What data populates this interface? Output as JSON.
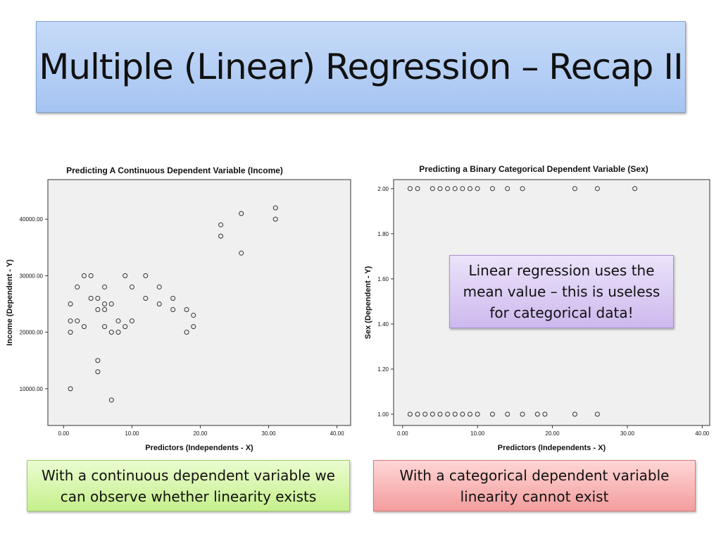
{
  "slide": {
    "title": "Multiple (Linear) Regression – Recap II"
  },
  "colors": {
    "title_bg": "#b5cff5",
    "plot_bg": "#f0f0f0",
    "purple_box": "#dccbf5",
    "green_box": "#d8f6b0",
    "red_box": "#f9bcbc"
  },
  "callouts": {
    "purple": "Linear regression uses the mean value – this is useless for categorical data!",
    "green": "With a continuous dependent variable we can observe whether linearity exists",
    "red": "With a categorical dependent variable linearity cannot exist"
  },
  "chart_data": [
    {
      "type": "scatter",
      "title": "Predicting A Continuous Dependent Variable (Income)",
      "xlabel": "Predictors (Independents - X)",
      "ylabel": "Income (Dependent - Y)",
      "xlim": [
        -2.3,
        42
      ],
      "ylim": [
        3500,
        47000
      ],
      "xticks": [
        0,
        10,
        20,
        30,
        40
      ],
      "xtick_labels": [
        "0.00",
        "10.00",
        "20.00",
        "30.00",
        "40.00"
      ],
      "yticks": [
        10000,
        20000,
        30000,
        40000
      ],
      "ytick_labels": [
        "10000.00",
        "20000.00",
        "30000.00",
        "40000.00"
      ],
      "points": [
        [
          1,
          10000
        ],
        [
          1,
          20000
        ],
        [
          1,
          22000
        ],
        [
          1,
          25000
        ],
        [
          2,
          22000
        ],
        [
          2,
          28000
        ],
        [
          3,
          21000
        ],
        [
          3,
          30000
        ],
        [
          4,
          26000
        ],
        [
          4,
          30000
        ],
        [
          5,
          13000
        ],
        [
          5,
          15000
        ],
        [
          5,
          24000
        ],
        [
          5,
          26000
        ],
        [
          6,
          21000
        ],
        [
          6,
          24000
        ],
        [
          6,
          25000
        ],
        [
          6,
          28000
        ],
        [
          7,
          8000
        ],
        [
          7,
          20000
        ],
        [
          7,
          25000
        ],
        [
          8,
          20000
        ],
        [
          8,
          22000
        ],
        [
          9,
          21000
        ],
        [
          9,
          30000
        ],
        [
          10,
          22000
        ],
        [
          10,
          28000
        ],
        [
          12,
          26000
        ],
        [
          12,
          30000
        ],
        [
          14,
          25000
        ],
        [
          14,
          28000
        ],
        [
          16,
          24000
        ],
        [
          16,
          26000
        ],
        [
          18,
          20000
        ],
        [
          18,
          24000
        ],
        [
          19,
          21000
        ],
        [
          19,
          23000
        ],
        [
          23,
          37000
        ],
        [
          23,
          39000
        ],
        [
          26,
          34000
        ],
        [
          26,
          41000
        ],
        [
          31,
          40000
        ],
        [
          31,
          42000
        ]
      ]
    },
    {
      "type": "scatter",
      "title": "Predicting a Binary Categorical Dependent Variable (Sex)",
      "xlabel": "Predictors (Independents - X)",
      "ylabel": "Sex (Dependent - Y)",
      "xlim": [
        -1.2,
        41
      ],
      "ylim": [
        0.95,
        2.04
      ],
      "xticks": [
        0,
        10,
        20,
        30,
        40
      ],
      "xtick_labels": [
        "0.00",
        "10.00",
        "20.00",
        "30.00",
        "40.00"
      ],
      "yticks": [
        1.0,
        1.2,
        1.4,
        1.6,
        1.8,
        2.0
      ],
      "ytick_labels": [
        "1.00",
        "1.20",
        "1.40",
        "1.60",
        "1.80",
        "2.00"
      ],
      "points": [
        [
          1,
          2
        ],
        [
          2,
          2
        ],
        [
          4,
          2
        ],
        [
          5,
          2
        ],
        [
          6,
          2
        ],
        [
          7,
          2
        ],
        [
          8,
          2
        ],
        [
          9,
          2
        ],
        [
          10,
          2
        ],
        [
          12,
          2
        ],
        [
          14,
          2
        ],
        [
          16,
          2
        ],
        [
          23,
          2
        ],
        [
          26,
          2
        ],
        [
          31,
          2
        ],
        [
          1,
          1
        ],
        [
          2,
          1
        ],
        [
          3,
          1
        ],
        [
          4,
          1
        ],
        [
          5,
          1
        ],
        [
          6,
          1
        ],
        [
          7,
          1
        ],
        [
          8,
          1
        ],
        [
          9,
          1
        ],
        [
          10,
          1
        ],
        [
          12,
          1
        ],
        [
          14,
          1
        ],
        [
          16,
          1
        ],
        [
          18,
          1
        ],
        [
          19,
          1
        ],
        [
          23,
          1
        ],
        [
          26,
          1
        ]
      ]
    }
  ]
}
